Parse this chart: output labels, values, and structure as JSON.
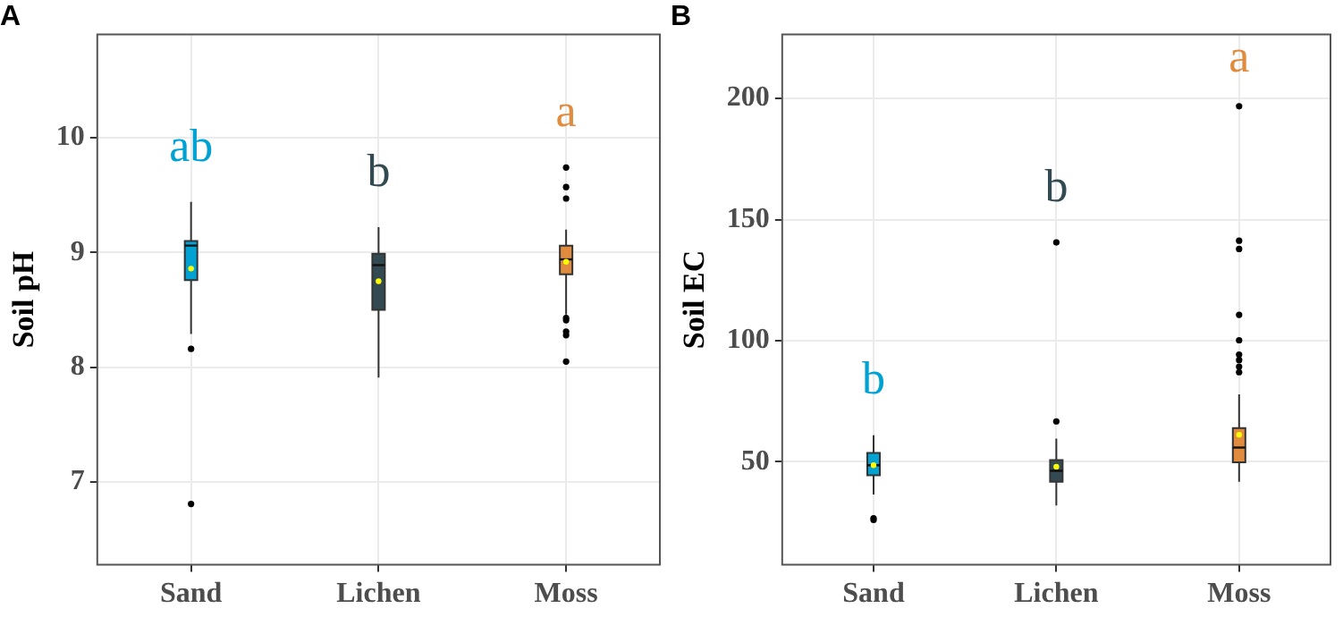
{
  "chart_data": [
    {
      "type": "box",
      "title": "A",
      "ylabel": "Soil pH",
      "categories": [
        "Sand",
        "Lichen",
        "Moss"
      ],
      "colors": [
        "#00a2d3",
        "#344a52",
        "#e08b3e"
      ],
      "boxes": [
        {
          "low": 8.29,
          "q1": 8.76,
          "median": 9.06,
          "q3": 9.1,
          "high": 9.44,
          "mean": 8.86,
          "outliers": [
            8.16,
            6.81
          ]
        },
        {
          "low": 7.91,
          "q1": 8.5,
          "median": 8.89,
          "q3": 8.99,
          "high": 9.22,
          "mean": 8.75
        },
        {
          "low": 8.46,
          "q1": 8.81,
          "median": 8.94,
          "q3": 9.06,
          "high": 9.2,
          "mean": 8.92,
          "outliers": [
            9.74,
            9.57,
            9.47,
            8.43,
            8.41,
            8.31,
            8.28,
            8.05
          ]
        }
      ],
      "ylim": [
        6.28,
        10.9
      ],
      "yticks": [
        7,
        8,
        9,
        10
      ],
      "grid": true,
      "annotations": [
        "ab",
        "b",
        "a"
      ]
    },
    {
      "type": "box",
      "title": "B",
      "ylabel": "Soil EC",
      "categories": [
        "Sand",
        "Lichen",
        "Moss"
      ],
      "colors": [
        "#00a2d3",
        "#344a52",
        "#e08b3e"
      ],
      "boxes": [
        {
          "low": 36.5,
          "q1": 44.5,
          "median": 48.6,
          "q3": 53.7,
          "high": 61,
          "mean": 48.6,
          "outliers": [
            26.7,
            26
          ]
        },
        {
          "low": 32,
          "q1": 41.8,
          "median": 46.3,
          "q3": 50.7,
          "high": 59.6,
          "mean": 48,
          "outliers": [
            66.7,
            140.6
          ]
        },
        {
          "low": 41.8,
          "q1": 49.8,
          "median": 55.9,
          "q3": 63.9,
          "high": 77.9,
          "mean": 61.2,
          "outliers": [
            196.8,
            141.3,
            137.9,
            110.7,
            100.2,
            94.3,
            92,
            89.3,
            87
          ]
        }
      ],
      "ylim": [
        7.5,
        226.5
      ],
      "yticks": [
        50,
        100,
        150,
        200
      ],
      "grid": true,
      "annotations": [
        "b",
        "b",
        "a"
      ]
    }
  ]
}
